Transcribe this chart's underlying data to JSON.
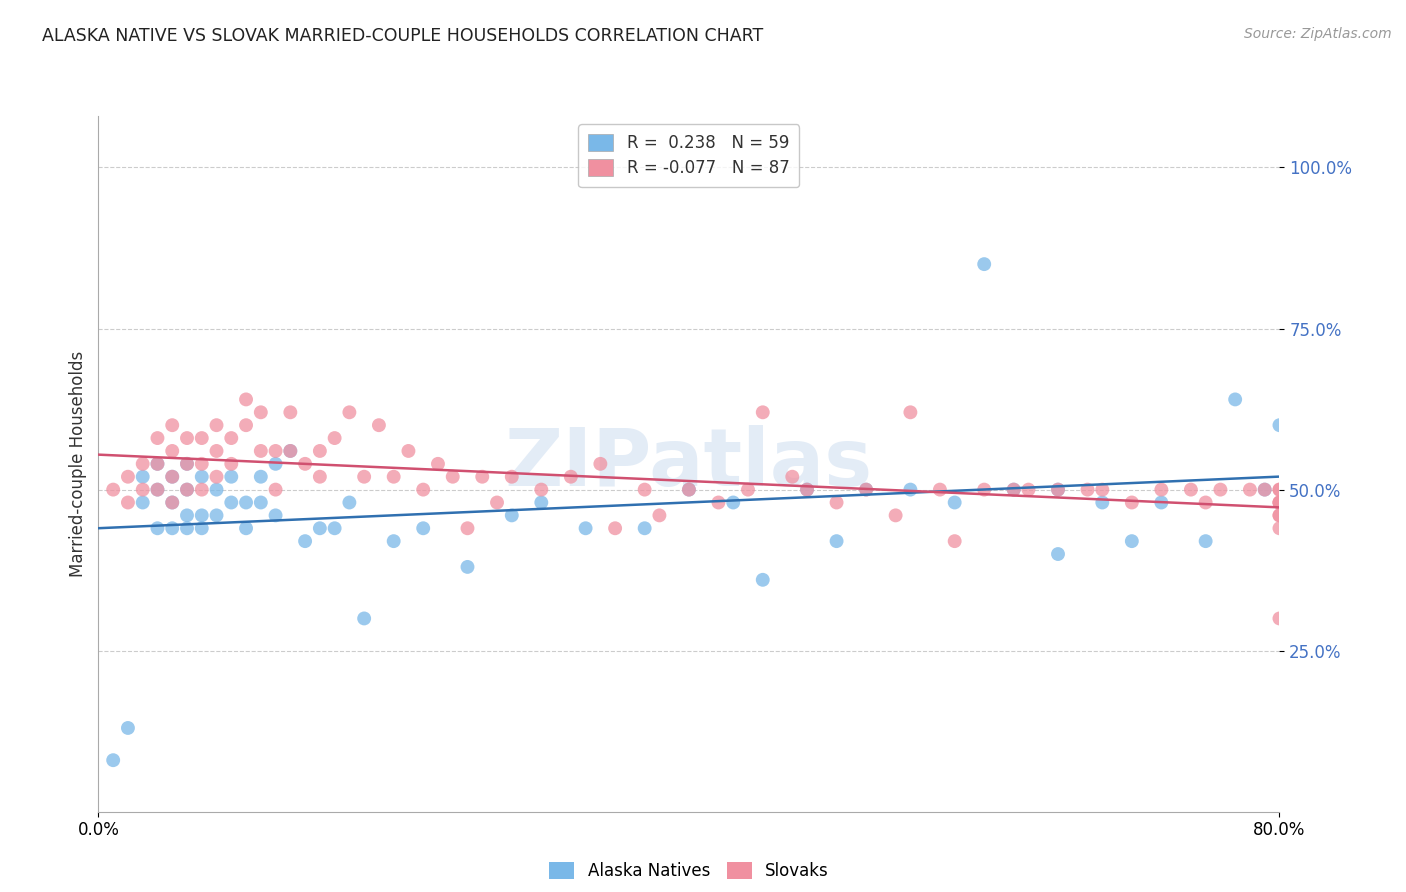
{
  "title": "ALASKA NATIVE VS SLOVAK MARRIED-COUPLE HOUSEHOLDS CORRELATION CHART",
  "source": "Source: ZipAtlas.com",
  "ylabel": "Married-couple Households",
  "ytick_labels": [
    "100.0%",
    "75.0%",
    "50.0%",
    "25.0%"
  ],
  "ytick_values": [
    1.0,
    0.75,
    0.5,
    0.25
  ],
  "xlim": [
    0.0,
    0.8
  ],
  "ylim": [
    0.0,
    1.08
  ],
  "alaska_color": "#7ab8e8",
  "slovak_color": "#f090a0",
  "alaska_R": 0.238,
  "alaska_N": 59,
  "slovak_R": -0.077,
  "slovak_N": 87,
  "alaska_line_color": "#3070b0",
  "slovak_line_color": "#d05070",
  "watermark": "ZIPatlas",
  "alaska_x": [
    0.01,
    0.02,
    0.03,
    0.03,
    0.04,
    0.04,
    0.04,
    0.05,
    0.05,
    0.05,
    0.06,
    0.06,
    0.06,
    0.06,
    0.07,
    0.07,
    0.07,
    0.08,
    0.08,
    0.09,
    0.09,
    0.1,
    0.1,
    0.11,
    0.11,
    0.12,
    0.12,
    0.13,
    0.14,
    0.15,
    0.16,
    0.17,
    0.18,
    0.2,
    0.22,
    0.25,
    0.28,
    0.3,
    0.33,
    0.37,
    0.4,
    0.43,
    0.45,
    0.48,
    0.5,
    0.52,
    0.55,
    0.58,
    0.6,
    0.62,
    0.65,
    0.65,
    0.68,
    0.7,
    0.72,
    0.75,
    0.77,
    0.79,
    0.8
  ],
  "alaska_y": [
    0.08,
    0.13,
    0.48,
    0.52,
    0.44,
    0.5,
    0.54,
    0.44,
    0.48,
    0.52,
    0.44,
    0.46,
    0.5,
    0.54,
    0.44,
    0.46,
    0.52,
    0.46,
    0.5,
    0.48,
    0.52,
    0.44,
    0.48,
    0.48,
    0.52,
    0.46,
    0.54,
    0.56,
    0.42,
    0.44,
    0.44,
    0.48,
    0.3,
    0.42,
    0.44,
    0.38,
    0.46,
    0.48,
    0.44,
    0.44,
    0.5,
    0.48,
    0.36,
    0.5,
    0.42,
    0.5,
    0.5,
    0.48,
    0.85,
    0.5,
    0.4,
    0.5,
    0.48,
    0.42,
    0.48,
    0.42,
    0.64,
    0.5,
    0.6
  ],
  "slovak_x": [
    0.01,
    0.02,
    0.02,
    0.03,
    0.03,
    0.04,
    0.04,
    0.04,
    0.05,
    0.05,
    0.05,
    0.05,
    0.06,
    0.06,
    0.06,
    0.07,
    0.07,
    0.07,
    0.08,
    0.08,
    0.08,
    0.09,
    0.09,
    0.1,
    0.1,
    0.11,
    0.11,
    0.12,
    0.12,
    0.13,
    0.13,
    0.14,
    0.15,
    0.15,
    0.16,
    0.17,
    0.18,
    0.19,
    0.2,
    0.21,
    0.22,
    0.23,
    0.24,
    0.25,
    0.26,
    0.27,
    0.28,
    0.3,
    0.32,
    0.34,
    0.35,
    0.37,
    0.38,
    0.4,
    0.42,
    0.44,
    0.45,
    0.47,
    0.48,
    0.5,
    0.52,
    0.54,
    0.55,
    0.57,
    0.58,
    0.6,
    0.62,
    0.63,
    0.65,
    0.67,
    0.68,
    0.7,
    0.72,
    0.74,
    0.75,
    0.76,
    0.78,
    0.79,
    0.8,
    0.8,
    0.8,
    0.8,
    0.8,
    0.8,
    0.8,
    0.8,
    0.8
  ],
  "slovak_y": [
    0.5,
    0.48,
    0.52,
    0.5,
    0.54,
    0.5,
    0.54,
    0.58,
    0.48,
    0.52,
    0.56,
    0.6,
    0.5,
    0.54,
    0.58,
    0.5,
    0.54,
    0.58,
    0.52,
    0.56,
    0.6,
    0.54,
    0.58,
    0.6,
    0.64,
    0.56,
    0.62,
    0.5,
    0.56,
    0.56,
    0.62,
    0.54,
    0.52,
    0.56,
    0.58,
    0.62,
    0.52,
    0.6,
    0.52,
    0.56,
    0.5,
    0.54,
    0.52,
    0.44,
    0.52,
    0.48,
    0.52,
    0.5,
    0.52,
    0.54,
    0.44,
    0.5,
    0.46,
    0.5,
    0.48,
    0.5,
    0.62,
    0.52,
    0.5,
    0.48,
    0.5,
    0.46,
    0.62,
    0.5,
    0.42,
    0.5,
    0.5,
    0.5,
    0.5,
    0.5,
    0.5,
    0.48,
    0.5,
    0.5,
    0.48,
    0.5,
    0.5,
    0.5,
    0.3,
    0.48,
    0.5,
    0.46,
    0.48,
    0.5,
    0.46,
    0.48,
    0.44
  ]
}
